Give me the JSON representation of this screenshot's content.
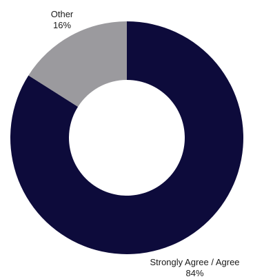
{
  "chart_data": {
    "type": "pie",
    "variant": "donut",
    "slices": [
      {
        "label": "Strongly Agree / Agree",
        "value": 84,
        "value_label": "84%",
        "color": "#0d0b3b"
      },
      {
        "label": "Other",
        "value": 16,
        "value_label": "16%",
        "color": "#9b9a9e"
      }
    ],
    "title": "",
    "legend": "none"
  }
}
